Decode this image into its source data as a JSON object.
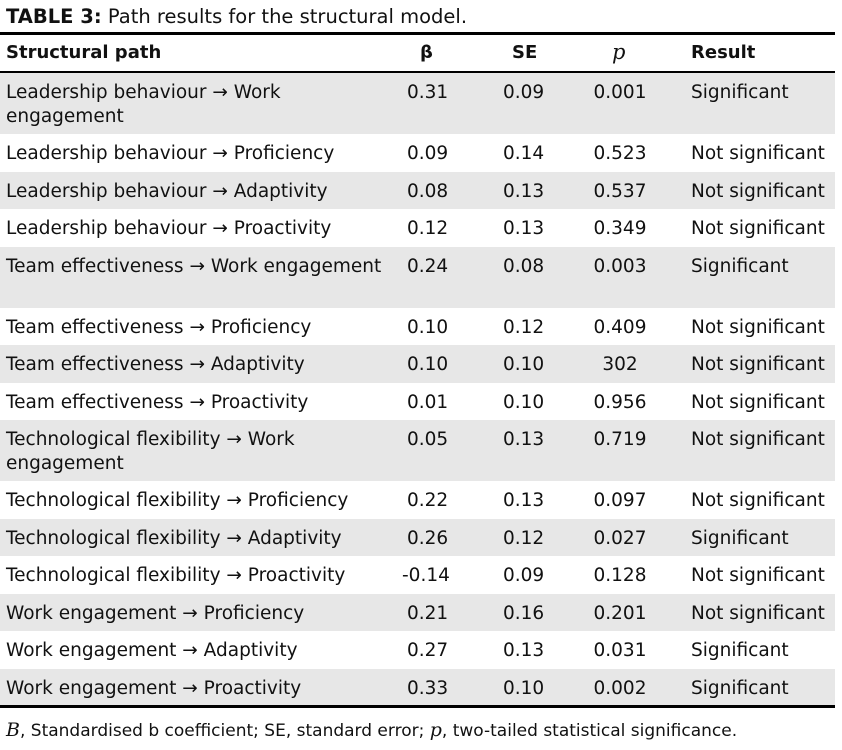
{
  "caption": {
    "label": "TABLE 3:",
    "text": "Path results for the structural model."
  },
  "headers": {
    "path": "Structural path",
    "beta": "β",
    "se": "SE",
    "p": "p",
    "result": "Result"
  },
  "rows": [
    {
      "path": "Leadership behaviour → Work engagement",
      "beta": "0.31",
      "se": "0.09",
      "p": "0.001",
      "result": "Significant"
    },
    {
      "path": "Leadership behaviour → Proficiency",
      "beta": "0.09",
      "se": "0.14",
      "p": "0.523",
      "result": "Not significant"
    },
    {
      "path": "Leadership behaviour → Adaptivity",
      "beta": "0.08",
      "se": "0.13",
      "p": "0.537",
      "result": "Not significant"
    },
    {
      "path": "Leadership behaviour → Proactivity",
      "beta": "0.12",
      "se": "0.13",
      "p": "0.349",
      "result": "Not significant"
    },
    {
      "path": "Team effectiveness → Work engagement",
      "beta": "0.24",
      "se": "0.08",
      "p": "0.003",
      "result": "Significant"
    },
    {
      "path": "Team effectiveness → Proficiency",
      "beta": "0.10",
      "se": "0.12",
      "p": "0.409",
      "result": "Not significant"
    },
    {
      "path": "Team effectiveness → Adaptivity",
      "beta": "0.10",
      "se": "0.10",
      "p": "302",
      "result": "Not significant"
    },
    {
      "path": "Team effectiveness → Proactivity",
      "beta": "0.01",
      "se": "0.10",
      "p": "0.956",
      "result": "Not significant"
    },
    {
      "path": "Technological flexibility → Work engagement",
      "beta": "0.05",
      "se": "0.13",
      "p": "0.719",
      "result": "Not significant"
    },
    {
      "path": "Technological flexibility → Proficiency",
      "beta": "0.22",
      "se": "0.13",
      "p": "0.097",
      "result": "Not significant"
    },
    {
      "path": "Technological flexibility → Adaptivity",
      "beta": "0.26",
      "se": "0.12",
      "p": "0.027",
      "result": "Significant"
    },
    {
      "path": "Technological flexibility → Proactivity",
      "beta": "-0.14",
      "se": "0.09",
      "p": "0.128",
      "result": "Not significant"
    },
    {
      "path": "Work engagement → Proficiency",
      "beta": "0.21",
      "se": "0.16",
      "p": "0.201",
      "result": "Not significant"
    },
    {
      "path": "Work engagement → Adaptivity",
      "beta": "0.27",
      "se": "0.13",
      "p": "0.031",
      "result": "Significant"
    },
    {
      "path": "Work engagement → Proactivity",
      "beta": "0.33",
      "se": "0.10",
      "p": "0.002",
      "result": "Significant"
    }
  ],
  "footnote": {
    "beta_symbol": "B",
    "text_1": ", Standardised b coefficient; SE, standard error; ",
    "p_symbol": "p",
    "text_2": ", two-tailed statistical significance."
  },
  "colors": {
    "shade": "#e7e7e7",
    "rule": "#000000"
  }
}
